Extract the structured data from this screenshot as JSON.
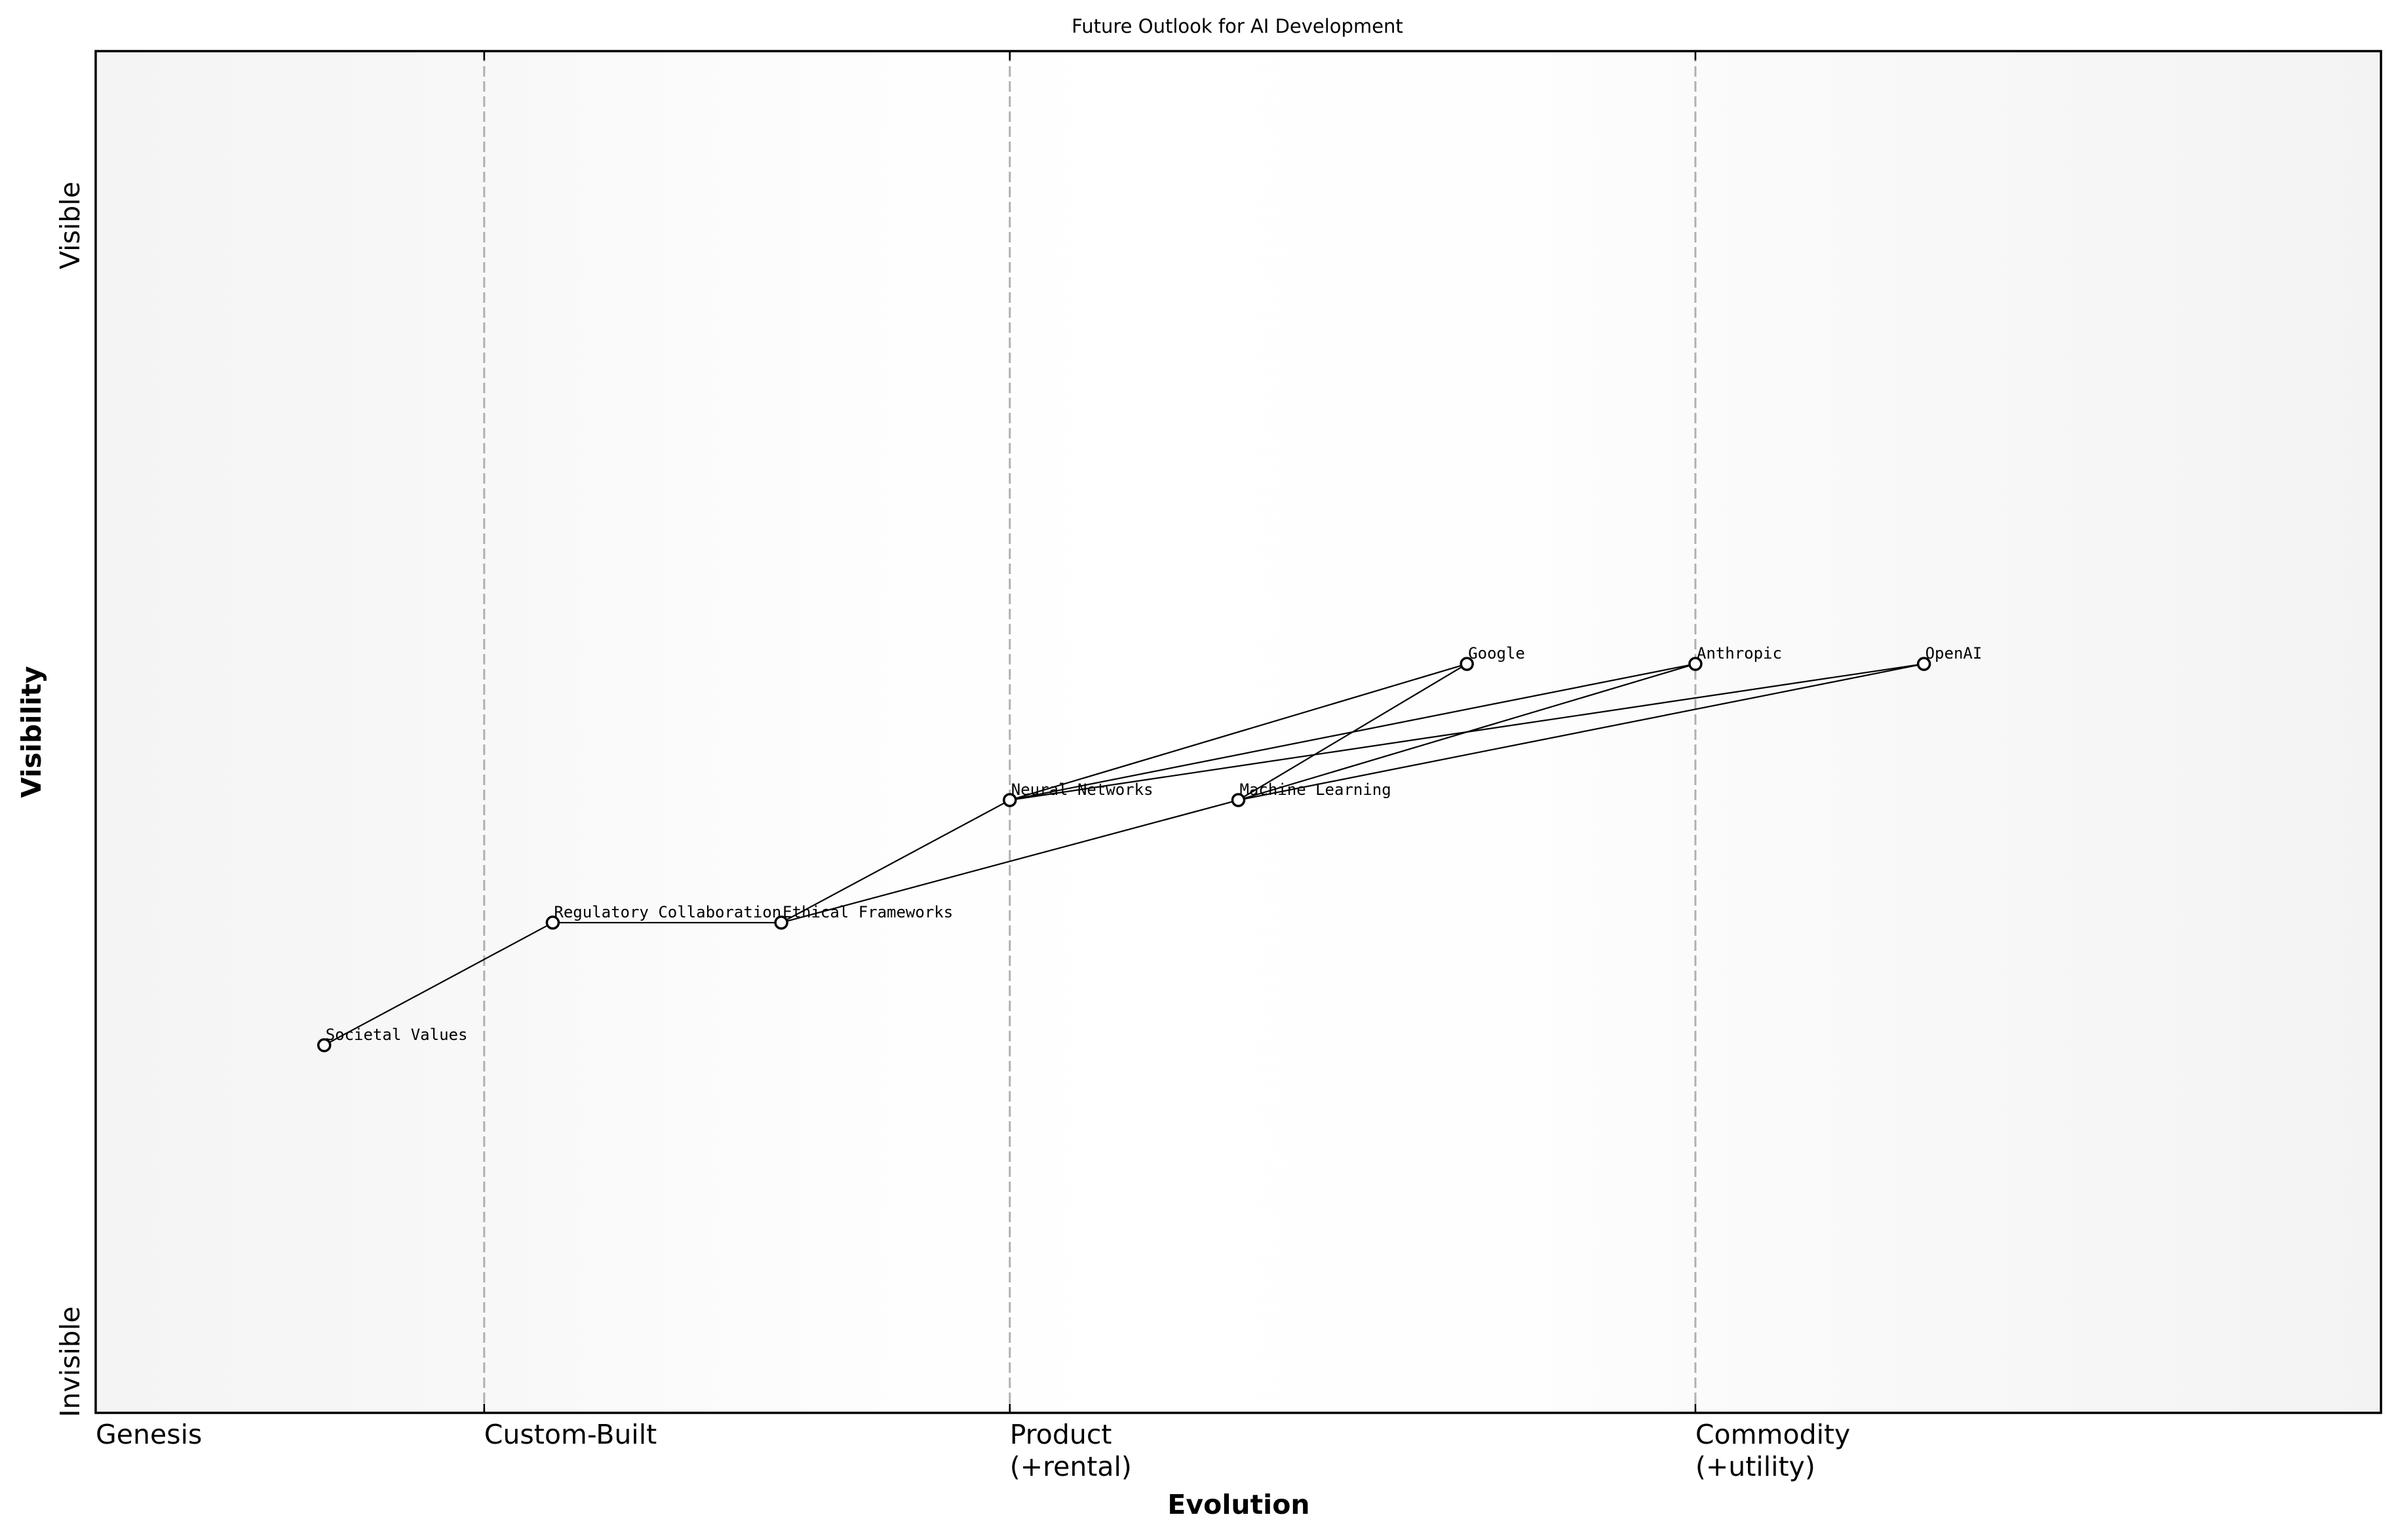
{
  "chart": {
    "title": "Future Outlook for AI Development",
    "xlabel": "Evolution",
    "ylabel": "Visibility",
    "y_top_label": "Visible",
    "y_bottom_label": "Invisible",
    "stages": [
      {
        "label": "Genesis",
        "label_line2": "",
        "x": 0.0
      },
      {
        "label": "Custom-Built",
        "label_line2": "",
        "x": 0.17
      },
      {
        "label": "Product",
        "label_line2": "(+rental)",
        "x": 0.4
      },
      {
        "label": "Commodity",
        "label_line2": "(+utility)",
        "x": 0.7
      }
    ]
  },
  "chart_data": {
    "type": "scatter",
    "title": "Future Outlook for AI Development",
    "xlabel": "Evolution",
    "ylabel": "Visibility",
    "xlim": [
      0,
      1
    ],
    "ylim": [
      0,
      1
    ],
    "x_tick_labels": [
      "Genesis",
      "Custom-Built",
      "Product (+rental)",
      "Commodity (+utility)"
    ],
    "x_ticks": [
      0.0,
      0.17,
      0.4,
      0.7
    ],
    "y_tick_labels": [
      "Invisible",
      "Visible"
    ],
    "grid": false,
    "stage_dividers": [
      0.17,
      0.4,
      0.7
    ],
    "nodes": [
      {
        "id": "societal_values",
        "label": "Societal Values",
        "evolution": 0.1,
        "visibility": 0.27
      },
      {
        "id": "regulatory_collaboration",
        "label": "Regulatory Collaboration",
        "evolution": 0.2,
        "visibility": 0.36
      },
      {
        "id": "ethical_frameworks",
        "label": "Ethical Frameworks",
        "evolution": 0.3,
        "visibility": 0.36
      },
      {
        "id": "neural_networks",
        "label": "Neural Networks",
        "evolution": 0.4,
        "visibility": 0.45
      },
      {
        "id": "machine_learning",
        "label": "Machine Learning",
        "evolution": 0.5,
        "visibility": 0.45
      },
      {
        "id": "google",
        "label": "Google",
        "evolution": 0.6,
        "visibility": 0.55
      },
      {
        "id": "anthropic",
        "label": "Anthropic",
        "evolution": 0.7,
        "visibility": 0.55
      },
      {
        "id": "openai",
        "label": "OpenAI",
        "evolution": 0.8,
        "visibility": 0.55
      }
    ],
    "edges": [
      [
        "societal_values",
        "regulatory_collaboration"
      ],
      [
        "regulatory_collaboration",
        "ethical_frameworks"
      ],
      [
        "ethical_frameworks",
        "neural_networks"
      ],
      [
        "ethical_frameworks",
        "machine_learning"
      ],
      [
        "neural_networks",
        "google"
      ],
      [
        "neural_networks",
        "anthropic"
      ],
      [
        "neural_networks",
        "openai"
      ],
      [
        "machine_learning",
        "google"
      ],
      [
        "machine_learning",
        "anthropic"
      ],
      [
        "machine_learning",
        "openai"
      ]
    ]
  },
  "colors": {
    "plot_bg_edge": "#f4f4f4",
    "plot_bg_mid": "#ffffff",
    "divider": "#b0b0b0",
    "line": "#000000",
    "node_fill": "#ffffff",
    "node_stroke": "#000000"
  }
}
